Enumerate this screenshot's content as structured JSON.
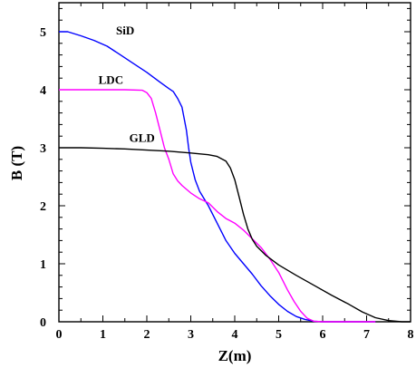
{
  "chart_data": {
    "type": "line",
    "xlabel": "Z(m)",
    "ylabel": "B (T)",
    "xlim": [
      0,
      8
    ],
    "ylim": [
      0,
      5.5
    ],
    "xticks": [
      "0",
      "1",
      "2",
      "3",
      "4",
      "5",
      "6",
      "7",
      "8"
    ],
    "yticks": [
      "0",
      "1",
      "2",
      "3",
      "4",
      "5"
    ],
    "grid": false,
    "legend": "none",
    "series": [
      {
        "name": "SiD",
        "color": "#0000ff",
        "label_at": [
          1.3,
          4.95
        ],
        "points": [
          [
            0,
            5.0
          ],
          [
            0.2,
            5.0
          ],
          [
            0.5,
            4.93
          ],
          [
            0.8,
            4.85
          ],
          [
            1.1,
            4.75
          ],
          [
            1.4,
            4.6
          ],
          [
            1.7,
            4.45
          ],
          [
            2.0,
            4.3
          ],
          [
            2.3,
            4.13
          ],
          [
            2.5,
            4.02
          ],
          [
            2.6,
            3.97
          ],
          [
            2.7,
            3.85
          ],
          [
            2.8,
            3.7
          ],
          [
            2.9,
            3.3
          ],
          [
            2.95,
            3.0
          ],
          [
            3.0,
            2.75
          ],
          [
            3.1,
            2.45
          ],
          [
            3.2,
            2.25
          ],
          [
            3.4,
            2.0
          ],
          [
            3.6,
            1.7
          ],
          [
            3.8,
            1.4
          ],
          [
            4.0,
            1.18
          ],
          [
            4.2,
            1.0
          ],
          [
            4.4,
            0.82
          ],
          [
            4.6,
            0.62
          ],
          [
            4.8,
            0.45
          ],
          [
            5.0,
            0.3
          ],
          [
            5.2,
            0.18
          ],
          [
            5.4,
            0.09
          ],
          [
            5.6,
            0.04
          ],
          [
            5.8,
            0.01
          ],
          [
            6.0,
            0.0
          ],
          [
            7.2,
            0.0
          ]
        ]
      },
      {
        "name": "LDC",
        "color": "#ff00ff",
        "label_at": [
          0.9,
          4.1
        ],
        "points": [
          [
            0,
            4.0
          ],
          [
            0.5,
            4.0
          ],
          [
            1.0,
            4.0
          ],
          [
            1.5,
            4.0
          ],
          [
            1.9,
            3.99
          ],
          [
            2.0,
            3.95
          ],
          [
            2.1,
            3.85
          ],
          [
            2.2,
            3.6
          ],
          [
            2.3,
            3.3
          ],
          [
            2.4,
            3.0
          ],
          [
            2.5,
            2.8
          ],
          [
            2.6,
            2.55
          ],
          [
            2.7,
            2.43
          ],
          [
            2.8,
            2.35
          ],
          [
            3.0,
            2.22
          ],
          [
            3.2,
            2.12
          ],
          [
            3.4,
            2.05
          ],
          [
            3.6,
            1.9
          ],
          [
            3.8,
            1.78
          ],
          [
            4.0,
            1.7
          ],
          [
            4.2,
            1.58
          ],
          [
            4.4,
            1.43
          ],
          [
            4.6,
            1.28
          ],
          [
            4.8,
            1.08
          ],
          [
            5.0,
            0.85
          ],
          [
            5.2,
            0.55
          ],
          [
            5.35,
            0.35
          ],
          [
            5.5,
            0.18
          ],
          [
            5.65,
            0.06
          ],
          [
            5.8,
            0.01
          ],
          [
            6.0,
            0.0
          ],
          [
            7.2,
            0.0
          ]
        ]
      },
      {
        "name": "GLD",
        "color": "#000000",
        "label_at": [
          1.6,
          3.1
        ],
        "points": [
          [
            0,
            3.0
          ],
          [
            0.5,
            3.0
          ],
          [
            1.0,
            2.99
          ],
          [
            1.5,
            2.98
          ],
          [
            2.0,
            2.96
          ],
          [
            2.5,
            2.94
          ],
          [
            3.0,
            2.91
          ],
          [
            3.4,
            2.88
          ],
          [
            3.6,
            2.85
          ],
          [
            3.8,
            2.77
          ],
          [
            3.9,
            2.65
          ],
          [
            4.0,
            2.45
          ],
          [
            4.1,
            2.15
          ],
          [
            4.2,
            1.85
          ],
          [
            4.3,
            1.6
          ],
          [
            4.4,
            1.42
          ],
          [
            4.5,
            1.3
          ],
          [
            4.7,
            1.15
          ],
          [
            5.0,
            0.98
          ],
          [
            5.4,
            0.8
          ],
          [
            5.8,
            0.63
          ],
          [
            6.2,
            0.46
          ],
          [
            6.6,
            0.3
          ],
          [
            6.9,
            0.17
          ],
          [
            7.2,
            0.07
          ],
          [
            7.5,
            0.02
          ],
          [
            7.8,
            0.0
          ],
          [
            8.0,
            0.0
          ]
        ]
      }
    ]
  }
}
